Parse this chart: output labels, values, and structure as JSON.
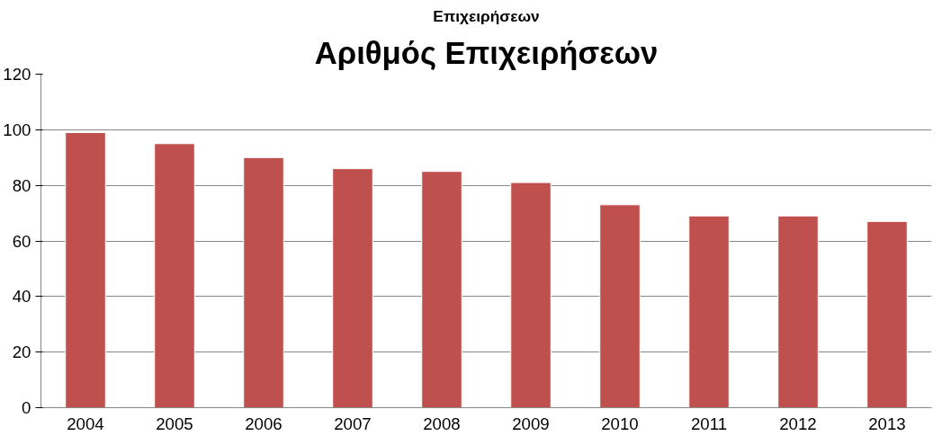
{
  "chart_data": {
    "type": "bar",
    "title": "Αριθμός Επιχειρήσεων",
    "annotations": [
      "Επιχειρήσεων"
    ],
    "categories": [
      "2004",
      "2005",
      "2006",
      "2007",
      "2008",
      "2009",
      "2010",
      "2011",
      "2012",
      "2013"
    ],
    "values": [
      99,
      95,
      90,
      86,
      85,
      81,
      73,
      69,
      69,
      67
    ],
    "color": "#c0504d",
    "ylim": [
      0,
      120
    ],
    "yticks": [
      0,
      20,
      40,
      60,
      80,
      100,
      120
    ],
    "grid": "y"
  }
}
